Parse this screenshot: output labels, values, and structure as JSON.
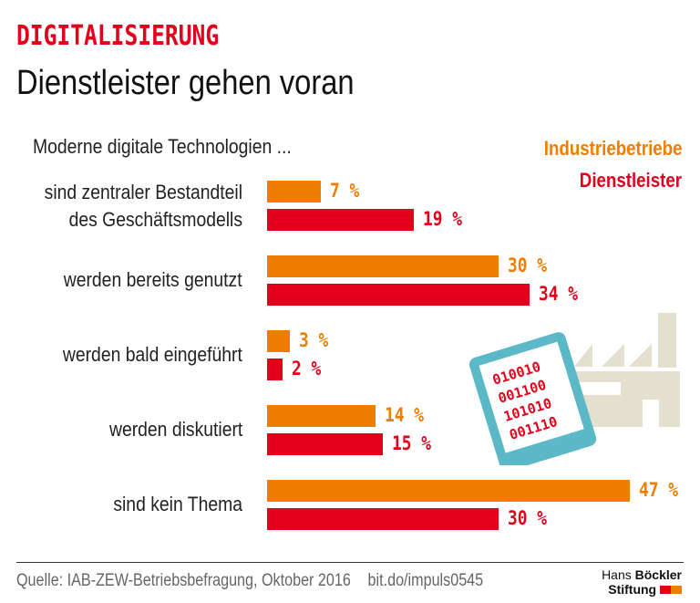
{
  "header": {
    "kicker": "DIGITALISIERUNG",
    "title": "Dienstleister gehen voran",
    "subtitle": "Moderne digitale Technologien ..."
  },
  "chart_data": {
    "type": "bar",
    "orientation": "horizontal",
    "xlim": [
      0,
      50
    ],
    "unit": "%",
    "categories": [
      "sind zentraler Bestandteil des Geschäftsmodells",
      "werden bereits genutzt",
      "werden bald eingeführt",
      "werden diskutiert",
      "sind kein Thema"
    ],
    "category_lines": [
      [
        "sind zentraler Bestandteil",
        "des Geschäftsmodells"
      ],
      [
        "werden bereits genutzt"
      ],
      [
        "werden bald eingeführt"
      ],
      [
        "werden diskutiert"
      ],
      [
        "sind kein Thema"
      ]
    ],
    "series": [
      {
        "name": "Industriebetriebe",
        "color": "#ef7d00",
        "values": [
          7,
          30,
          3,
          14,
          47
        ]
      },
      {
        "name": "Dienstleister",
        "color": "#e2001a",
        "values": [
          19,
          34,
          2,
          15,
          30
        ]
      }
    ],
    "legend": "top-right"
  },
  "illustration": {
    "tablet_lines": [
      "010010",
      "001100",
      "101010",
      "001110"
    ],
    "icons": [
      "tablet-icon",
      "factory-icon"
    ]
  },
  "footer": {
    "source": "Quelle:  IAB-ZEW-Betriebsbefragung, Oktober 2016",
    "link": "bit.do/impuls0545",
    "logo_line1a": "Hans ",
    "logo_line1b": "Böckler",
    "logo_line2": "Stiftung"
  }
}
